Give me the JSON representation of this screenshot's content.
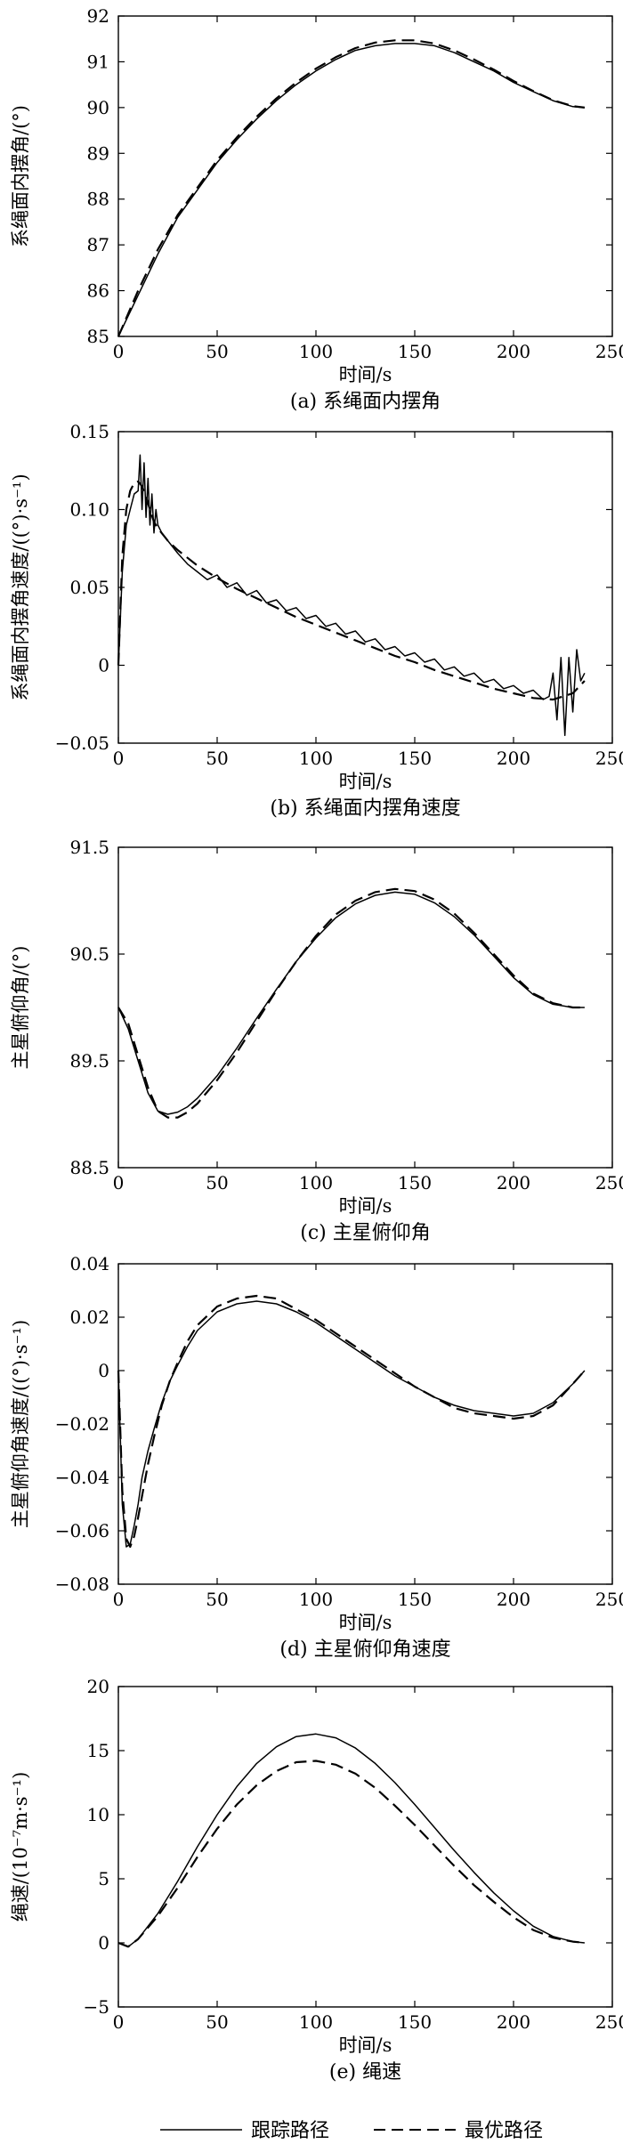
{
  "chart_data": [
    {
      "type": "line",
      "caption": "(a) 系绳面内摆角",
      "xlabel": "时间/s",
      "ylabel": "系绳面内摆角/(°)",
      "xlim": [
        0,
        250
      ],
      "ylim": [
        85,
        92
      ],
      "xticks": [
        0,
        50,
        100,
        150,
        200,
        250
      ],
      "yticks": [
        85,
        86,
        87,
        88,
        89,
        90,
        91,
        92
      ],
      "series": [
        {
          "style": "solid",
          "x": [
            0,
            10,
            20,
            30,
            40,
            50,
            60,
            70,
            80,
            90,
            100,
            110,
            120,
            130,
            140,
            150,
            160,
            170,
            180,
            190,
            200,
            210,
            220,
            230,
            236
          ],
          "y": [
            85.0,
            85.9,
            86.8,
            87.6,
            88.2,
            88.8,
            89.3,
            89.75,
            90.15,
            90.5,
            90.8,
            91.05,
            91.25,
            91.35,
            91.4,
            91.4,
            91.35,
            91.2,
            91.0,
            90.8,
            90.55,
            90.35,
            90.15,
            90.02,
            90.0
          ]
        },
        {
          "style": "dashed",
          "x": [
            0,
            10,
            20,
            30,
            40,
            50,
            60,
            70,
            80,
            90,
            100,
            110,
            120,
            130,
            140,
            150,
            160,
            170,
            180,
            190,
            200,
            210,
            220,
            230,
            236
          ],
          "y": [
            85.0,
            86.0,
            86.9,
            87.65,
            88.25,
            88.85,
            89.35,
            89.8,
            90.2,
            90.55,
            90.85,
            91.1,
            91.3,
            91.42,
            91.47,
            91.47,
            91.4,
            91.25,
            91.05,
            90.83,
            90.58,
            90.36,
            90.16,
            90.03,
            90.0
          ]
        }
      ]
    },
    {
      "type": "line",
      "caption": "(b) 系绳面内摆角速度",
      "xlabel": "时间/s",
      "ylabel": "系绳面内摆角速度/((°)·s⁻¹)",
      "xlim": [
        0,
        250
      ],
      "ylim": [
        -0.05,
        0.15
      ],
      "xticks": [
        0,
        50,
        100,
        150,
        200,
        250
      ],
      "yticks": [
        -0.05,
        0,
        0.05,
        0.1,
        0.15
      ],
      "ytick_labels": [
        "−0.05",
        "0",
        "0.05",
        "0.10",
        "0.15"
      ],
      "series": [
        {
          "style": "solid",
          "x": [
            0,
            2,
            4,
            6,
            8,
            10,
            11,
            12,
            13,
            14,
            15,
            16,
            17,
            18,
            19,
            20,
            22,
            25,
            30,
            35,
            40,
            45,
            50,
            55,
            60,
            65,
            70,
            75,
            80,
            85,
            90,
            95,
            100,
            105,
            110,
            115,
            120,
            125,
            130,
            135,
            140,
            145,
            150,
            155,
            160,
            165,
            170,
            175,
            180,
            185,
            190,
            195,
            200,
            205,
            210,
            215,
            218,
            220,
            222,
            224,
            226,
            228,
            230,
            232,
            234,
            236
          ],
          "y": [
            0.0,
            0.06,
            0.09,
            0.1,
            0.11,
            0.112,
            0.135,
            0.1,
            0.13,
            0.095,
            0.12,
            0.09,
            0.11,
            0.085,
            0.1,
            0.09,
            0.085,
            0.08,
            0.072,
            0.065,
            0.06,
            0.055,
            0.058,
            0.05,
            0.053,
            0.045,
            0.048,
            0.04,
            0.042,
            0.035,
            0.037,
            0.03,
            0.032,
            0.025,
            0.027,
            0.02,
            0.022,
            0.015,
            0.017,
            0.01,
            0.012,
            0.006,
            0.008,
            0.002,
            0.004,
            -0.003,
            -0.001,
            -0.007,
            -0.005,
            -0.011,
            -0.009,
            -0.015,
            -0.013,
            -0.018,
            -0.016,
            -0.022,
            -0.02,
            -0.005,
            -0.035,
            0.005,
            -0.045,
            0.005,
            -0.03,
            0.01,
            -0.01,
            -0.005
          ]
        },
        {
          "style": "dashed",
          "x": [
            0,
            2,
            4,
            6,
            8,
            10,
            12,
            14,
            16,
            18,
            20,
            25,
            30,
            40,
            50,
            60,
            70,
            80,
            90,
            100,
            110,
            120,
            130,
            140,
            150,
            160,
            170,
            180,
            190,
            200,
            210,
            220,
            230,
            236
          ],
          "y": [
            0.0,
            0.07,
            0.1,
            0.112,
            0.117,
            0.118,
            0.115,
            0.108,
            0.1,
            0.092,
            0.088,
            0.08,
            0.074,
            0.064,
            0.056,
            0.049,
            0.043,
            0.037,
            0.031,
            0.026,
            0.021,
            0.016,
            0.011,
            0.006,
            0.002,
            -0.003,
            -0.007,
            -0.011,
            -0.015,
            -0.018,
            -0.021,
            -0.022,
            -0.018,
            -0.01
          ]
        }
      ]
    },
    {
      "type": "line",
      "caption": "(c) 主星俯仰角",
      "xlabel": "时间/s",
      "ylabel": "主星俯仰角/(°)",
      "xlim": [
        0,
        250
      ],
      "ylim": [
        88.5,
        91.5
      ],
      "xticks": [
        0,
        50,
        100,
        150,
        200,
        250
      ],
      "yticks": [
        88.5,
        89.5,
        90.5,
        91.5
      ],
      "series": [
        {
          "style": "solid",
          "x": [
            0,
            5,
            10,
            15,
            20,
            25,
            30,
            35,
            40,
            50,
            60,
            70,
            80,
            90,
            100,
            110,
            120,
            130,
            140,
            150,
            160,
            170,
            180,
            190,
            200,
            210,
            220,
            230,
            236
          ],
          "y": [
            90.0,
            89.8,
            89.5,
            89.2,
            89.03,
            89.0,
            89.02,
            89.07,
            89.15,
            89.36,
            89.62,
            89.9,
            90.17,
            90.43,
            90.65,
            90.84,
            90.97,
            91.05,
            91.08,
            91.06,
            90.98,
            90.85,
            90.68,
            90.48,
            90.28,
            90.12,
            90.03,
            90.0,
            90.0
          ]
        },
        {
          "style": "dashed",
          "x": [
            0,
            5,
            10,
            15,
            20,
            25,
            30,
            35,
            40,
            50,
            60,
            70,
            80,
            90,
            100,
            110,
            120,
            130,
            140,
            150,
            160,
            170,
            180,
            190,
            200,
            210,
            220,
            230,
            236
          ],
          "y": [
            90.0,
            89.85,
            89.55,
            89.25,
            89.03,
            88.97,
            88.97,
            89.02,
            89.1,
            89.32,
            89.58,
            89.87,
            90.16,
            90.43,
            90.67,
            90.87,
            91.0,
            91.08,
            91.11,
            91.09,
            91.01,
            90.88,
            90.7,
            90.5,
            90.3,
            90.13,
            90.04,
            90.0,
            90.0
          ]
        }
      ]
    },
    {
      "type": "line",
      "caption": "(d) 主星俯仰角速度",
      "xlabel": "时间/s",
      "ylabel": "主星俯仰角速度/((°)·s⁻¹)",
      "xlim": [
        0,
        250
      ],
      "ylim": [
        -0.08,
        0.04
      ],
      "xticks": [
        0,
        50,
        100,
        150,
        200,
        250
      ],
      "yticks": [
        -0.08,
        -0.06,
        -0.04,
        -0.02,
        0,
        0.02,
        0.04
      ],
      "ytick_labels": [
        "−0.08",
        "−0.06",
        "−0.04",
        "−0.02",
        "0",
        "0.02",
        "0.04"
      ],
      "series": [
        {
          "style": "solid",
          "x": [
            0,
            2,
            4,
            6,
            8,
            10,
            12,
            15,
            18,
            22,
            26,
            30,
            35,
            40,
            50,
            60,
            70,
            80,
            90,
            100,
            110,
            120,
            130,
            140,
            150,
            160,
            170,
            180,
            190,
            200,
            210,
            220,
            230,
            236
          ],
          "y": [
            0.0,
            -0.05,
            -0.066,
            -0.065,
            -0.058,
            -0.05,
            -0.04,
            -0.03,
            -0.022,
            -0.012,
            -0.004,
            0.002,
            0.009,
            0.015,
            0.022,
            0.025,
            0.026,
            0.025,
            0.022,
            0.018,
            0.013,
            0.008,
            0.003,
            -0.002,
            -0.006,
            -0.01,
            -0.013,
            -0.015,
            -0.016,
            -0.017,
            -0.016,
            -0.012,
            -0.005,
            0.0
          ]
        },
        {
          "style": "dashed",
          "x": [
            0,
            2,
            4,
            6,
            8,
            10,
            12,
            15,
            18,
            22,
            26,
            30,
            35,
            40,
            50,
            60,
            70,
            80,
            90,
            100,
            110,
            120,
            130,
            140,
            150,
            160,
            170,
            180,
            190,
            200,
            210,
            220,
            230,
            236
          ],
          "y": [
            0.0,
            -0.045,
            -0.063,
            -0.066,
            -0.062,
            -0.055,
            -0.047,
            -0.035,
            -0.025,
            -0.013,
            -0.004,
            0.003,
            0.011,
            0.017,
            0.024,
            0.027,
            0.028,
            0.027,
            0.023,
            0.019,
            0.014,
            0.009,
            0.004,
            -0.001,
            -0.006,
            -0.01,
            -0.014,
            -0.016,
            -0.017,
            -0.018,
            -0.017,
            -0.013,
            -0.005,
            0.0
          ]
        }
      ]
    },
    {
      "type": "line",
      "caption": "(e) 绳速",
      "xlabel": "时间/s",
      "ylabel": "绳速/(10⁻⁷m·s⁻¹)",
      "xlim": [
        0,
        250
      ],
      "ylim": [
        -5,
        20
      ],
      "xticks": [
        0,
        50,
        100,
        150,
        200,
        250
      ],
      "yticks": [
        -5,
        0,
        5,
        10,
        15,
        20
      ],
      "ytick_labels": [
        "−5",
        "0",
        "5",
        "10",
        "15",
        "20"
      ],
      "series": [
        {
          "style": "solid",
          "x": [
            0,
            5,
            10,
            20,
            30,
            40,
            50,
            60,
            70,
            80,
            90,
            100,
            110,
            120,
            130,
            140,
            150,
            160,
            170,
            180,
            190,
            200,
            210,
            220,
            230,
            236
          ],
          "y": [
            0.0,
            -0.3,
            0.3,
            2.3,
            4.8,
            7.5,
            10.0,
            12.2,
            14.0,
            15.3,
            16.1,
            16.3,
            16.0,
            15.2,
            14.0,
            12.5,
            10.8,
            9.0,
            7.2,
            5.5,
            3.9,
            2.5,
            1.3,
            0.5,
            0.1,
            0.0
          ]
        },
        {
          "style": "dashed",
          "x": [
            0,
            5,
            10,
            20,
            30,
            40,
            50,
            60,
            70,
            80,
            90,
            100,
            110,
            120,
            130,
            140,
            150,
            160,
            170,
            180,
            190,
            200,
            210,
            220,
            230,
            236
          ],
          "y": [
            0.0,
            -0.3,
            0.3,
            2.1,
            4.3,
            6.7,
            8.9,
            10.8,
            12.3,
            13.4,
            14.1,
            14.2,
            13.9,
            13.2,
            12.1,
            10.7,
            9.2,
            7.6,
            6.0,
            4.5,
            3.2,
            2.0,
            1.0,
            0.4,
            0.1,
            0.0
          ]
        }
      ]
    }
  ],
  "legend": {
    "solid_label": "跟踪路径",
    "dashed_label": "最优路径"
  }
}
